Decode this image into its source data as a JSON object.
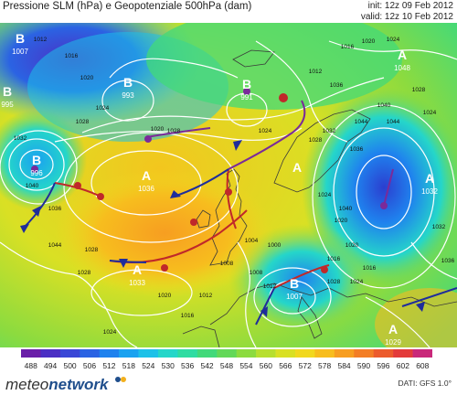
{
  "header": {
    "title": "Pressione SLM (hPa) e Geopotenziale 500hPa (dam)",
    "init": "init: 12z 09 Feb 2012",
    "valid": "valid: 12z 10 Feb 2012"
  },
  "map": {
    "pressure_centers": [
      {
        "letter": "B",
        "value": "1007"
      },
      {
        "letter": "B",
        "value": "995"
      },
      {
        "letter": "B",
        "value": "993"
      },
      {
        "letter": "B",
        "value": "991"
      },
      {
        "letter": "B",
        "value": "996"
      },
      {
        "letter": "A",
        "value": "1036"
      },
      {
        "letter": "A",
        "value": "1033"
      },
      {
        "letter": "A",
        "value": ""
      },
      {
        "letter": "A",
        "value": "1048"
      },
      {
        "letter": "B",
        "value": "1007"
      },
      {
        "letter": "A",
        "value": "1032"
      },
      {
        "letter": "A",
        "value": "1029"
      }
    ],
    "isobar_labels": [
      "1012",
      "1016",
      "1020",
      "1024",
      "1028",
      "1032",
      "1036",
      "1040",
      "1044",
      "1028",
      "1024",
      "1020",
      "1016",
      "1012",
      "1008",
      "1004",
      "1000",
      "1008",
      "1012",
      "1016",
      "1020",
      "1024",
      "1028",
      "1032",
      "1036",
      "1040",
      "1044",
      "1012",
      "1016",
      "1020",
      "1024",
      "1028",
      "1024",
      "1020",
      "1016",
      "1024",
      "1028",
      "1032",
      "1036",
      "1044",
      "1040",
      "1036",
      "1028",
      "1024",
      "1020",
      "1028"
    ]
  },
  "colorbar": {
    "ticks": [
      "488",
      "494",
      "500",
      "506",
      "512",
      "518",
      "524",
      "530",
      "536",
      "542",
      "548",
      "554",
      "560",
      "566",
      "572",
      "578",
      "584",
      "590",
      "596",
      "602",
      "608"
    ],
    "colors": [
      "#6a1fa8",
      "#4b2fc4",
      "#3a47d6",
      "#2b63e3",
      "#1f82ee",
      "#1aa2f0",
      "#1dc1e8",
      "#25d6c9",
      "#2fdca2",
      "#42d97a",
      "#63d858",
      "#8cdb3f",
      "#b7df2f",
      "#d9e024",
      "#f1d81f",
      "#f7bd1e",
      "#f79e21",
      "#f37e26",
      "#ec5b2d",
      "#e33b3b",
      "#c9287a"
    ]
  },
  "footer": {
    "brand_light": "meteo",
    "brand_bold": "network",
    "source": "DATI: GFS 1.0°"
  }
}
